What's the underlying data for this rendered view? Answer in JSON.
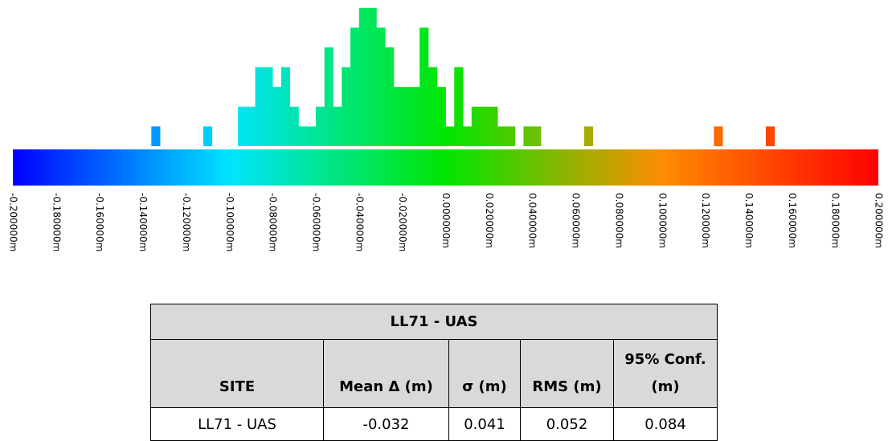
{
  "chart_data": {
    "type": "bar",
    "title": "",
    "xlabel": "",
    "ylabel": "",
    "xlim": [
      -0.2,
      0.2
    ],
    "bin_width": 0.004,
    "color_scale": {
      "min": -0.2,
      "max": 0.2,
      "colors": [
        "#0000ff",
        "#00e5ff",
        "#00e600",
        "#ff8c00",
        "#ff0000"
      ]
    },
    "ticks": [
      -0.2,
      -0.18,
      -0.16,
      -0.14,
      -0.12,
      -0.1,
      -0.08,
      -0.06,
      -0.04,
      -0.02,
      0.0,
      0.02,
      0.04,
      0.06,
      0.08,
      0.1,
      0.12,
      0.14,
      0.16,
      0.18,
      0.2
    ],
    "tick_labels": [
      "-0.200000m",
      "-0.180000m",
      "-0.160000m",
      "-0.140000m",
      "-0.120000m",
      "-0.100000m",
      "-0.080000m",
      "-0.060000m",
      "-0.040000m",
      "-0.020000m",
      "0.000000m",
      "0.020000m",
      "0.040000m",
      "0.060000m",
      "0.080000m",
      "0.100000m",
      "0.120000m",
      "0.140000m",
      "0.160000m",
      "0.180000m",
      "0.200000m"
    ],
    "bins": [
      {
        "x": -0.136,
        "count": 1
      },
      {
        "x": -0.112,
        "count": 1
      },
      {
        "x": -0.096,
        "count": 2
      },
      {
        "x": -0.092,
        "count": 2
      },
      {
        "x": -0.088,
        "count": 4
      },
      {
        "x": -0.084,
        "count": 4
      },
      {
        "x": -0.08,
        "count": 3
      },
      {
        "x": -0.076,
        "count": 4
      },
      {
        "x": -0.072,
        "count": 2
      },
      {
        "x": -0.068,
        "count": 1
      },
      {
        "x": -0.064,
        "count": 1
      },
      {
        "x": -0.06,
        "count": 2
      },
      {
        "x": -0.056,
        "count": 5
      },
      {
        "x": -0.052,
        "count": 2
      },
      {
        "x": -0.048,
        "count": 4
      },
      {
        "x": -0.044,
        "count": 6
      },
      {
        "x": -0.04,
        "count": 7
      },
      {
        "x": -0.036,
        "count": 7
      },
      {
        "x": -0.032,
        "count": 6
      },
      {
        "x": -0.028,
        "count": 5
      },
      {
        "x": -0.024,
        "count": 3
      },
      {
        "x": -0.02,
        "count": 3
      },
      {
        "x": -0.016,
        "count": 3
      },
      {
        "x": -0.012,
        "count": 6
      },
      {
        "x": -0.008,
        "count": 4
      },
      {
        "x": -0.004,
        "count": 3
      },
      {
        "x": 0.0,
        "count": 1
      },
      {
        "x": 0.004,
        "count": 4
      },
      {
        "x": 0.008,
        "count": 1
      },
      {
        "x": 0.012,
        "count": 2
      },
      {
        "x": 0.016,
        "count": 2
      },
      {
        "x": 0.02,
        "count": 2
      },
      {
        "x": 0.024,
        "count": 1
      },
      {
        "x": 0.028,
        "count": 1
      },
      {
        "x": 0.036,
        "count": 1
      },
      {
        "x": 0.04,
        "count": 1
      },
      {
        "x": 0.064,
        "count": 1
      },
      {
        "x": 0.124,
        "count": 1
      },
      {
        "x": 0.148,
        "count": 1
      }
    ]
  },
  "stats_table": {
    "title": "LL71 - UAS",
    "headers": {
      "site": "SITE",
      "mean": "Mean Δ (m)",
      "sigma": "σ (m)",
      "rms": "RMS (m)",
      "conf_line1": "95% Conf.",
      "conf_line2": "(m)"
    },
    "row": {
      "site": "LL71 - UAS",
      "mean": "-0.032",
      "sigma": "0.041",
      "rms": "0.052",
      "conf": "0.084"
    }
  }
}
